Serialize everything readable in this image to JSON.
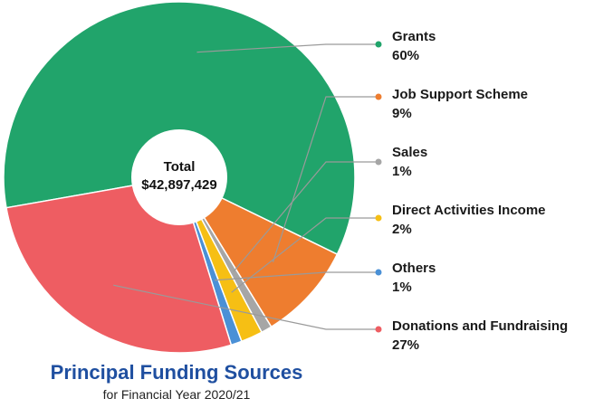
{
  "chart_data": {
    "type": "pie",
    "title": "Principal Funding Sources",
    "subtitle": "for Financial Year 2020/21",
    "center_label": "Total",
    "center_value": "$42,897,429",
    "slices": [
      {
        "name": "Grants",
        "value": 60,
        "label": "60%",
        "color": "#21a46b"
      },
      {
        "name": "Job Support Scheme",
        "value": 9,
        "label": "9%",
        "color": "#ee7d2f"
      },
      {
        "name": "Sales",
        "value": 1,
        "label": "1%",
        "color": "#a6a6a6"
      },
      {
        "name": "Direct Activities Income",
        "value": 2,
        "label": "2%",
        "color": "#f6bf14"
      },
      {
        "name": "Others",
        "value": 1,
        "label": "1%",
        "color": "#4a90d6"
      },
      {
        "name": "Donations and Fundraising",
        "value": 27,
        "label": "27%",
        "color": "#ee5d62"
      }
    ]
  }
}
